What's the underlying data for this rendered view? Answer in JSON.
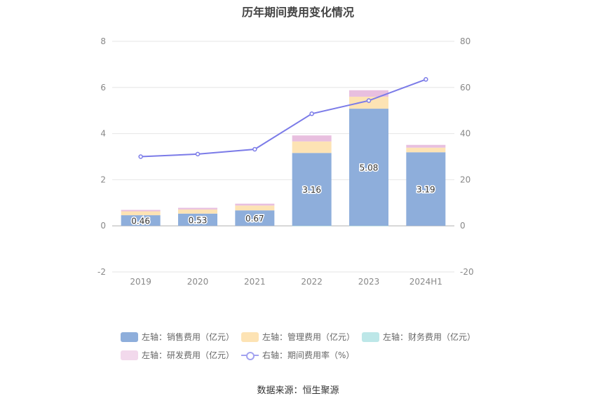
{
  "chart_data": {
    "type": "bar",
    "title": "历年期间费用变化情况",
    "categories": [
      "2019",
      "2020",
      "2021",
      "2022",
      "2023",
      "2024H1"
    ],
    "left_axis": {
      "ylim": [
        -2,
        8
      ],
      "ticks": [
        "8",
        "6",
        "4",
        "2",
        "0",
        "-2"
      ],
      "tick_values": [
        8,
        6,
        4,
        2,
        0,
        -2
      ]
    },
    "right_axis": {
      "ylim": [
        -20,
        80
      ],
      "ticks": [
        "80",
        "60",
        "40",
        "20",
        "0",
        "-20"
      ],
      "tick_values": [
        80,
        60,
        40,
        20,
        0,
        -20
      ]
    },
    "series": [
      {
        "name": "左轴：销售费用（亿元）",
        "type": "bar",
        "color": "#8eaedb",
        "values": [
          0.46,
          0.53,
          0.67,
          3.16,
          5.08,
          3.19
        ],
        "labels": [
          "0.46",
          "0.53",
          "0.67",
          "3.16",
          "5.08",
          "3.19"
        ]
      },
      {
        "name": "左轴：管理费用（亿元）",
        "type": "bar",
        "color": "#fde3b4",
        "values": [
          0.17,
          0.18,
          0.21,
          0.5,
          0.52,
          0.2
        ]
      },
      {
        "name": "左轴：财务费用（亿元）",
        "type": "bar",
        "color": "#bde7e8",
        "values": [
          0.0,
          0.0,
          0.0,
          -0.02,
          -0.02,
          0.0
        ]
      },
      {
        "name": "左轴：研发费用（亿元）",
        "type": "bar",
        "color": "#e8bfdf",
        "values": [
          0.06,
          0.07,
          0.08,
          0.26,
          0.28,
          0.12
        ]
      },
      {
        "name": "右轴：期间费用率（%）",
        "type": "line",
        "color": "#7b7be8",
        "values": [
          30.0,
          31.1,
          33.2,
          48.6,
          54.3,
          63.5
        ]
      }
    ]
  },
  "source": "数据来源：恒生聚源"
}
